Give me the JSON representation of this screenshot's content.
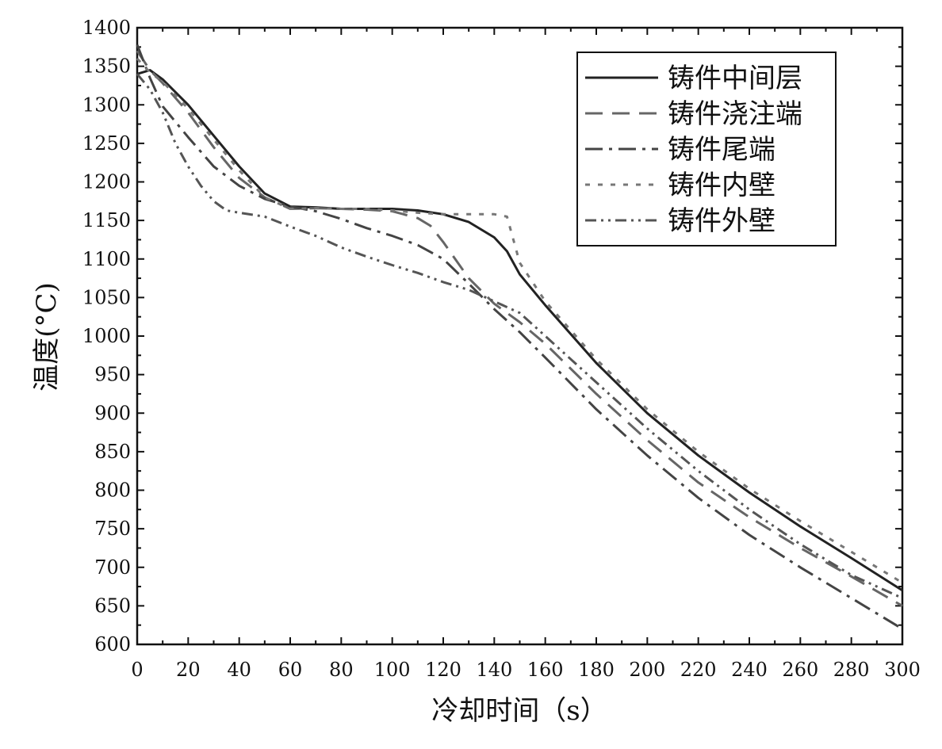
{
  "chart_data": {
    "type": "line",
    "xlabel": "冷却时间（s）",
    "ylabel": "温度(°C)",
    "xlim": [
      0,
      300
    ],
    "ylim": [
      600,
      1400
    ],
    "x_ticks": [
      0,
      20,
      40,
      60,
      80,
      100,
      120,
      140,
      160,
      180,
      200,
      220,
      240,
      260,
      280,
      300
    ],
    "y_ticks": [
      600,
      650,
      700,
      750,
      800,
      850,
      900,
      950,
      1000,
      1050,
      1100,
      1150,
      1200,
      1250,
      1300,
      1350,
      1400
    ],
    "grid": false,
    "legend_position": "top-right",
    "series": [
      {
        "name": "铸件中间层",
        "style": "solid",
        "color": "#222222",
        "x": [
          0,
          5,
          10,
          20,
          30,
          40,
          50,
          60,
          70,
          80,
          90,
          100,
          110,
          120,
          130,
          140,
          145,
          150,
          160,
          180,
          200,
          220,
          240,
          260,
          280,
          300
        ],
        "y": [
          1340,
          1345,
          1333,
          1300,
          1260,
          1220,
          1185,
          1168,
          1167,
          1165,
          1165,
          1165,
          1163,
          1158,
          1148,
          1128,
          1110,
          1080,
          1040,
          965,
          900,
          845,
          797,
          753,
          712,
          670
        ]
      },
      {
        "name": "铸件浇注端",
        "style": "dashed",
        "color": "#666666",
        "x": [
          0,
          5,
          10,
          20,
          30,
          40,
          50,
          60,
          70,
          80,
          90,
          100,
          110,
          115,
          120,
          130,
          140,
          150,
          160,
          180,
          200,
          220,
          240,
          260,
          280,
          300
        ],
        "y": [
          1370,
          1345,
          1328,
          1290,
          1245,
          1205,
          1180,
          1165,
          1166,
          1165,
          1164,
          1162,
          1153,
          1143,
          1122,
          1075,
          1042,
          1018,
          990,
          925,
          865,
          810,
          765,
          725,
          688,
          650
        ]
      },
      {
        "name": "铸件尾端",
        "style": "dash-dot",
        "color": "#444444",
        "x": [
          0,
          5,
          10,
          20,
          30,
          40,
          50,
          60,
          70,
          80,
          90,
          100,
          110,
          120,
          130,
          140,
          150,
          160,
          180,
          200,
          220,
          240,
          260,
          280,
          300
        ],
        "y": [
          1378,
          1335,
          1298,
          1258,
          1220,
          1195,
          1178,
          1168,
          1162,
          1152,
          1140,
          1130,
          1118,
          1100,
          1068,
          1035,
          1005,
          972,
          905,
          845,
          790,
          742,
          700,
          660,
          620
        ]
      },
      {
        "name": "铸件内壁",
        "style": "dotted",
        "color": "#777777",
        "x": [
          0,
          5,
          10,
          20,
          30,
          40,
          50,
          60,
          70,
          80,
          90,
          100,
          110,
          120,
          130,
          140,
          145,
          150,
          160,
          180,
          200,
          220,
          240,
          260,
          280,
          300
        ],
        "y": [
          1360,
          1342,
          1330,
          1295,
          1255,
          1215,
          1180,
          1165,
          1166,
          1165,
          1165,
          1163,
          1160,
          1158,
          1158,
          1158,
          1155,
          1095,
          1045,
          970,
          905,
          850,
          802,
          760,
          720,
          680
        ]
      },
      {
        "name": "铸件外壁",
        "style": "dash-dot-dot",
        "color": "#555555",
        "x": [
          0,
          5,
          10,
          15,
          20,
          25,
          30,
          35,
          40,
          50,
          60,
          70,
          80,
          90,
          100,
          110,
          120,
          130,
          140,
          150,
          160,
          180,
          200,
          220,
          240,
          260,
          280,
          300
        ],
        "y": [
          1340,
          1320,
          1290,
          1250,
          1220,
          1195,
          1175,
          1163,
          1160,
          1155,
          1142,
          1130,
          1115,
          1103,
          1092,
          1082,
          1070,
          1060,
          1045,
          1030,
          1000,
          940,
          880,
          825,
          775,
          730,
          690,
          660
        ]
      }
    ]
  }
}
